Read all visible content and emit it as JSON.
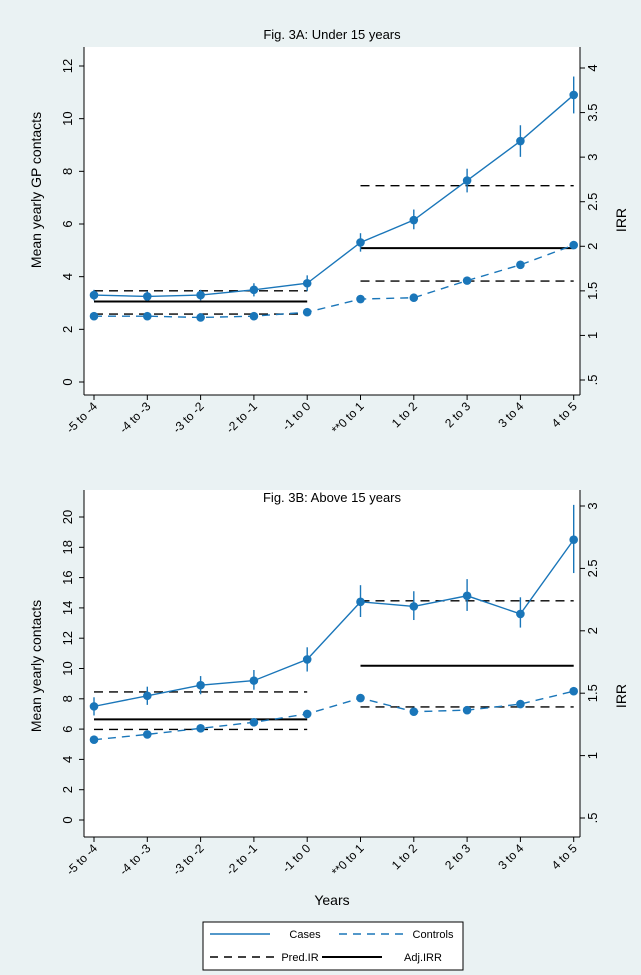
{
  "chart_data": [
    {
      "type": "line",
      "title": "Fig. 3A: Under 15 years",
      "xlabel": "",
      "ylabel": "Mean yearly GP contacts",
      "y2label": "IRR",
      "categories": [
        "-5 to -4",
        "-4 to -3",
        "-3 to -2",
        "-2 to -1",
        "-1 to 0",
        "**0 to 1",
        "1 to 2",
        "2 to 3",
        "3 to 4",
        "4 to 5"
      ],
      "ylim": [
        0,
        12
      ],
      "yticks": [
        "0",
        "2",
        "4",
        "6",
        "8",
        "10",
        "12"
      ],
      "y2lim": [
        0.5,
        4
      ],
      "y2ticks": [
        ".5",
        "1",
        "1.5",
        "2",
        "2.5",
        "3",
        "3.5",
        "4"
      ],
      "y2tick_values": [
        0.5,
        1,
        1.5,
        2,
        2.5,
        3,
        3.5,
        4
      ],
      "series": [
        {
          "name": "Cases",
          "values": [
            3.3,
            3.25,
            3.3,
            3.5,
            3.75,
            5.3,
            6.15,
            7.65,
            9.15,
            10.9
          ],
          "ci_low": [
            3.1,
            3.1,
            3.1,
            3.25,
            3.45,
            4.95,
            5.8,
            7.2,
            8.55,
            10.2
          ],
          "ci_high": [
            3.5,
            3.45,
            3.5,
            3.75,
            4.05,
            5.65,
            6.55,
            8.1,
            9.75,
            11.6
          ]
        },
        {
          "name": "Controls",
          "values": [
            2.5,
            2.5,
            2.45,
            2.5,
            2.65,
            3.15,
            3.2,
            3.85,
            4.45,
            5.2
          ]
        }
      ],
      "irr_lines": [
        {
          "name": "Pred.IR",
          "style": "dashed",
          "from": "-5 to -4",
          "to": "-1 to 0",
          "value": 1.5
        },
        {
          "name": "Adj.IRR",
          "style": "solid",
          "from": "-5 to -4",
          "to": "-1 to 0",
          "value": 1.38
        },
        {
          "name": "Pred.IR",
          "style": "dashed",
          "from": "-5 to -4",
          "to": "-1 to 0",
          "value": 1.24
        },
        {
          "name": "Pred.IR",
          "style": "dashed",
          "from": "**0 to 1",
          "to": "4 to 5",
          "value": 2.68
        },
        {
          "name": "Adj.IRR",
          "style": "solid",
          "from": "**0 to 1",
          "to": "4 to 5",
          "value": 1.98
        },
        {
          "name": "Pred.IR",
          "style": "dashed",
          "from": "**0 to 1",
          "to": "4 to 5",
          "value": 1.61
        }
      ]
    },
    {
      "type": "line",
      "title": "Fig. 3B: Above 15 years",
      "xlabel": "Years",
      "ylabel": "Mean yearly contacts",
      "y2label": "IRR",
      "categories": [
        "-5 to -4",
        "-4 to -3",
        "-3 to -2",
        "-2 to -1",
        "-1 to 0",
        "**0 to 1",
        "1 to 2",
        "2 to 3",
        "3 to 4",
        "4 to 5"
      ],
      "ylim": [
        0,
        20
      ],
      "yticks": [
        "0",
        "2",
        "4",
        "6",
        "8",
        "10",
        "12",
        "14",
        "16",
        "18",
        "20"
      ],
      "y2lim": [
        0.5,
        3
      ],
      "y2ticks": [
        ".5",
        "1",
        "1.5",
        "2",
        "2.5",
        "3"
      ],
      "y2tick_values": [
        0.5,
        1,
        1.5,
        2,
        2.5,
        3
      ],
      "series": [
        {
          "name": "Cases",
          "values": [
            7.5,
            8.2,
            8.9,
            9.2,
            10.6,
            14.4,
            14.1,
            14.8,
            13.6,
            18.5
          ],
          "ci_low": [
            6.9,
            7.6,
            8.3,
            8.6,
            9.8,
            13.4,
            13.2,
            13.8,
            12.7,
            16.3
          ],
          "ci_high": [
            8.1,
            8.8,
            9.5,
            9.9,
            11.4,
            15.5,
            15.1,
            15.9,
            14.7,
            20.8
          ]
        },
        {
          "name": "Controls",
          "values": [
            5.3,
            5.65,
            6.05,
            6.45,
            7.0,
            8.05,
            7.15,
            7.25,
            7.65,
            8.5
          ]
        }
      ],
      "irr_lines": [
        {
          "name": "Pred.IR",
          "style": "dashed",
          "from": "-5 to -4",
          "to": "-1 to 0",
          "value": 1.51
        },
        {
          "name": "Adj.IRR",
          "style": "solid",
          "from": "-5 to -4",
          "to": "-1 to 0",
          "value": 1.29
        },
        {
          "name": "Pred.IR",
          "style": "dashed",
          "from": "-5 to -4",
          "to": "-1 to 0",
          "value": 1.21
        },
        {
          "name": "Pred.IR",
          "style": "dashed",
          "from": "**0 to 1",
          "to": "4 to 5",
          "value": 2.24
        },
        {
          "name": "Adj.IRR",
          "style": "solid",
          "from": "**0 to 1",
          "to": "4 to 5",
          "value": 1.72
        },
        {
          "name": "Pred.IR",
          "style": "dashed",
          "from": "**0 to 1",
          "to": "4 to 5",
          "value": 1.39
        }
      ]
    }
  ],
  "legend": {
    "items": [
      "Cases",
      "Controls",
      "Pred.IR",
      "Adj.IRR"
    ],
    "placement": "bottom-center"
  },
  "colors": {
    "series": "#1a76b9",
    "reference": "#000000",
    "background": "#eaf2f3",
    "plot_area": "#ffffff"
  }
}
